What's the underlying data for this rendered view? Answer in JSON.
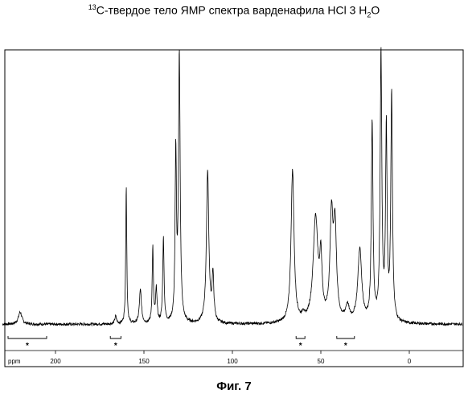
{
  "title": {
    "isotope_mass": "13",
    "text_main": "C-твердое тело ЯМР спектра варденафила HCl 3 H",
    "subscript": "2",
    "text_end": "O"
  },
  "caption": "Фиг. 7",
  "chart_data": {
    "type": "line",
    "title": "13C-твердое тело ЯМР спектра варденафила HCl 3 H2O",
    "xlabel": "ppm",
    "ylabel": "",
    "x_reversed": true,
    "xlim": [
      230,
      -30
    ],
    "ylim": [
      0,
      100
    ],
    "xticks": [
      200,
      150,
      100,
      50,
      0
    ],
    "xtick_labels": [
      "200",
      "150",
      "100",
      "50",
      "0"
    ],
    "axis_unit_label": "ppm",
    "grid": false,
    "legend": "none",
    "baseline": 2,
    "peaks": [
      {
        "ppm": 220,
        "height": 4,
        "width": 1.2
      },
      {
        "ppm": 166,
        "height": 2.5,
        "width": 0.6
      },
      {
        "ppm": 160,
        "height": 46,
        "width": 0.35
      },
      {
        "ppm": 152,
        "height": 11,
        "width": 0.7
      },
      {
        "ppm": 145,
        "height": 25,
        "width": 0.4
      },
      {
        "ppm": 143,
        "height": 11,
        "width": 0.5
      },
      {
        "ppm": 139,
        "height": 28,
        "width": 0.45
      },
      {
        "ppm": 132,
        "height": 55,
        "width": 0.45
      },
      {
        "ppm": 130,
        "height": 88,
        "width": 0.55
      },
      {
        "ppm": 114,
        "height": 50,
        "width": 0.8
      },
      {
        "ppm": 111,
        "height": 15,
        "width": 0.6
      },
      {
        "ppm": 66,
        "height": 50,
        "width": 1.0
      },
      {
        "ppm": 60,
        "height": 2,
        "width": 0.6
      },
      {
        "ppm": 53,
        "height": 34,
        "width": 1.6
      },
      {
        "ppm": 50,
        "height": 18,
        "width": 0.8
      },
      {
        "ppm": 44,
        "height": 33,
        "width": 1.0
      },
      {
        "ppm": 42,
        "height": 30,
        "width": 1.0
      },
      {
        "ppm": 35,
        "height": 5,
        "width": 1.2
      },
      {
        "ppm": 28,
        "height": 24,
        "width": 1.3
      },
      {
        "ppm": 21,
        "height": 65,
        "width": 0.55
      },
      {
        "ppm": 16,
        "height": 88,
        "width": 0.55
      },
      {
        "ppm": 13,
        "height": 63,
        "width": 0.5
      },
      {
        "ppm": 10,
        "height": 75,
        "width": 0.55
      }
    ],
    "spinning_sideband_markers": [
      {
        "from_ppm": 230,
        "to_ppm": 205,
        "label": "*"
      },
      {
        "from_ppm": 169,
        "to_ppm": 163,
        "label": "*"
      },
      {
        "from_ppm": 64,
        "to_ppm": 59,
        "label": "*"
      },
      {
        "from_ppm": 41,
        "to_ppm": 31,
        "label": "*"
      }
    ]
  }
}
